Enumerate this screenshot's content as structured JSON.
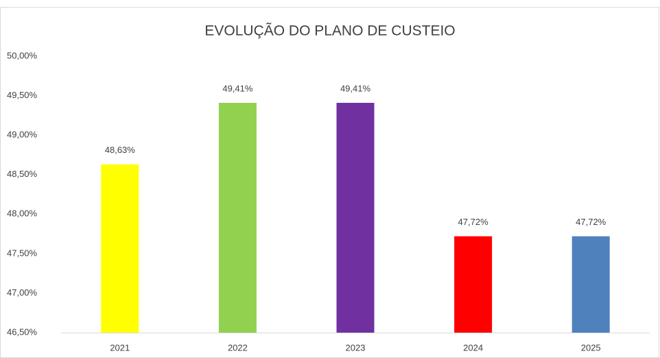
{
  "chart_data": {
    "type": "bar",
    "title": "EVOLUÇÃO DO PLANO DE CUSTEIO",
    "categories": [
      "2021",
      "2022",
      "2023",
      "2024",
      "2025"
    ],
    "values": [
      48.63,
      49.41,
      49.41,
      47.72,
      47.72
    ],
    "value_labels": [
      "48,63%",
      "49,41%",
      "49,41%",
      "47,72%",
      "47,72%"
    ],
    "colors": [
      "#ffff00",
      "#92d050",
      "#7030a0",
      "#ff0000",
      "#4f81bd"
    ],
    "ylim": [
      46.5,
      50
    ],
    "yticks": [
      {
        "value": 46.5,
        "label": "46,50%"
      },
      {
        "value": 47,
        "label": "47,00%"
      },
      {
        "value": 47.5,
        "label": "47,50%"
      },
      {
        "value": 48,
        "label": "48,00%"
      },
      {
        "value": 48.5,
        "label": "48,50%"
      },
      {
        "value": 49,
        "label": "49,00%"
      },
      {
        "value": 49.5,
        "label": "49,50%"
      },
      {
        "value": 50,
        "label": "50,00%"
      }
    ],
    "grid": false
  }
}
